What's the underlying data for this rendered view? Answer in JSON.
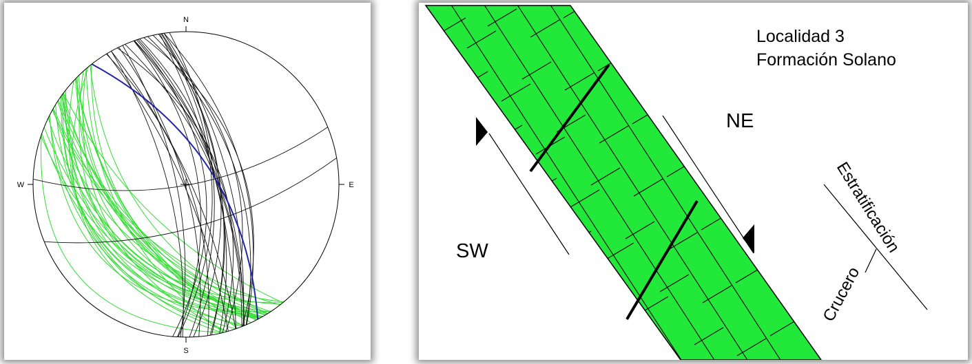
{
  "stereonet": {
    "labels": {
      "north": "N",
      "south": "S",
      "east": "E",
      "west": "W"
    },
    "colors": {
      "primitive": "#000000",
      "black_planes": "#111111",
      "green_planes": "#33dd33",
      "mean_plane": "#2222aa"
    }
  },
  "section": {
    "title_line1": "Localidad 3",
    "title_line2": "Formación Solano",
    "ne_label": "NE",
    "sw_label": "SW",
    "legend_bedding": "Estratificación",
    "legend_cleavage": "Crucero",
    "colors": {
      "layer_fill": "#22e83a",
      "line": "#000000"
    }
  }
}
